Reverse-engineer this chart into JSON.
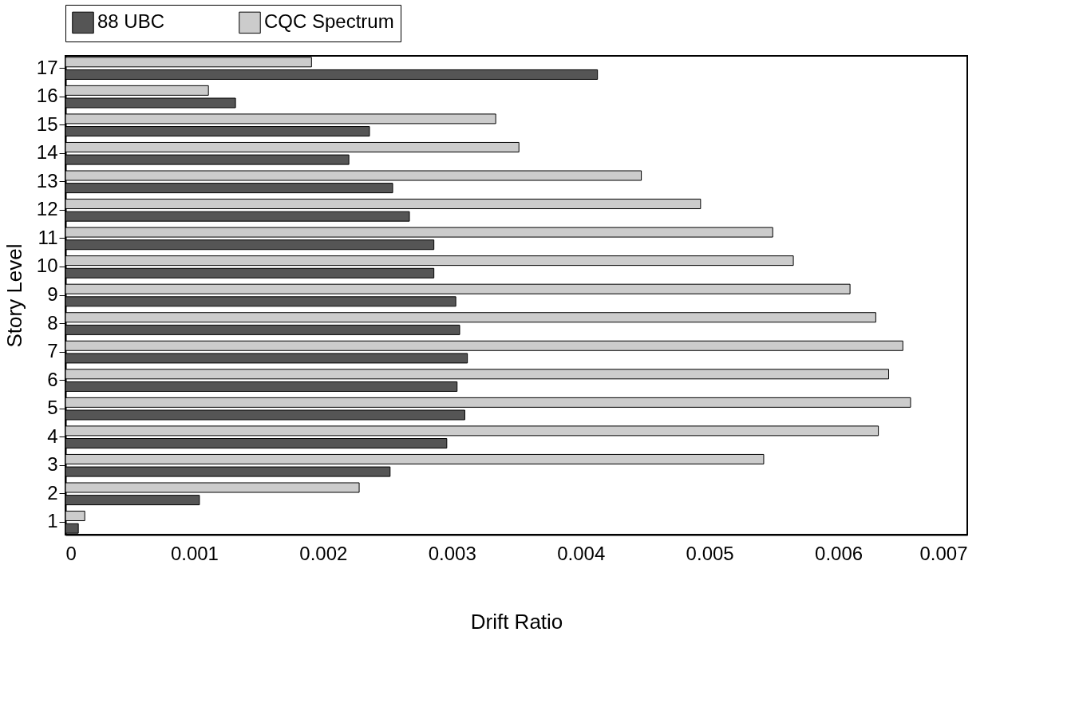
{
  "chart_data": {
    "type": "bar",
    "orientation": "horizontal",
    "xlabel": "Drift Ratio",
    "ylabel": "Story Level",
    "categories": [
      "17",
      "16",
      "15",
      "14",
      "13",
      "12",
      "11",
      "10",
      "9",
      "8",
      "7",
      "6",
      "5",
      "4",
      "3",
      "2",
      "1"
    ],
    "series": [
      {
        "name": "88 UBC",
        "color": "#555555",
        "values": [
          0.00413,
          0.00132,
          0.00236,
          0.0022,
          0.00254,
          0.00267,
          0.00286,
          0.00286,
          0.00303,
          0.00306,
          0.00312,
          0.00304,
          0.0031,
          0.00296,
          0.00252,
          0.00104,
          0.0001
        ]
      },
      {
        "name": "CQC Spectrum",
        "color": "#cccccc",
        "values": [
          0.00191,
          0.00111,
          0.00334,
          0.00352,
          0.00447,
          0.00493,
          0.00549,
          0.00565,
          0.00609,
          0.00629,
          0.0065,
          0.00639,
          0.00656,
          0.00631,
          0.00542,
          0.00228,
          0.00015
        ]
      }
    ],
    "xlim": [
      0,
      0.007
    ],
    "xticks": [
      0,
      0.001,
      0.002,
      0.003,
      0.004,
      0.005,
      0.006,
      0.007
    ],
    "grid": false,
    "legend": "top"
  }
}
